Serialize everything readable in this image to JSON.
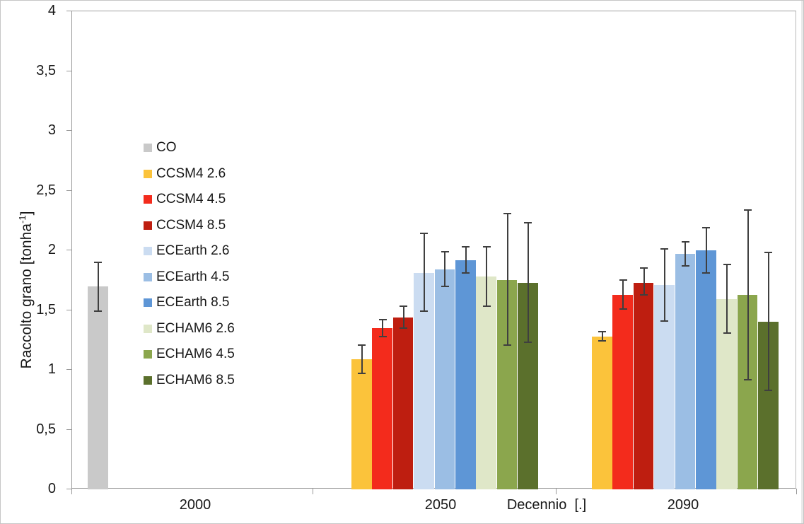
{
  "chart_data": {
    "type": "bar",
    "title": "",
    "xlabel": "Decennio  [.]",
    "ylabel": "Raccolto grano [tonha-1]",
    "ylabel_parts": {
      "main": "Raccolto grano [tonha",
      "sup": "-1",
      "end": "]"
    },
    "ylim": [
      0,
      4
    ],
    "ytick_values": [
      0,
      0.5,
      1,
      1.5,
      2,
      2.5,
      3,
      3.5,
      4
    ],
    "ytick_labels": [
      "0",
      "0,5",
      "1",
      "1,5",
      "2",
      "2,5",
      "3",
      "3,5",
      "4"
    ],
    "categories": [
      "2000",
      "2050",
      "2090"
    ],
    "x_tick_labels": [
      "2000",
      "2050",
      "2090"
    ],
    "grid": false,
    "error_bars": true,
    "legend_position": "inside top-left",
    "series": [
      {
        "name": "CO",
        "color": "#C9C9C9",
        "values": [
          1.7,
          null,
          null
        ],
        "err_lo": [
          1.49,
          null,
          null
        ],
        "err_hi": [
          1.9,
          null,
          null
        ]
      },
      {
        "name": "CCSM4 2.6",
        "color": "#FBC33B",
        "values": [
          null,
          1.09,
          1.28
        ],
        "err_lo": [
          null,
          0.97,
          1.24
        ],
        "err_hi": [
          null,
          1.21,
          1.32
        ]
      },
      {
        "name": "CCSM4 4.5",
        "color": "#F32B1C",
        "values": [
          null,
          1.35,
          1.63
        ],
        "err_lo": [
          null,
          1.28,
          1.51
        ],
        "err_hi": [
          null,
          1.42,
          1.75
        ]
      },
      {
        "name": "CCSM4 8.5",
        "color": "#BE1E10",
        "values": [
          null,
          1.44,
          1.73
        ],
        "err_lo": [
          null,
          1.35,
          1.63
        ],
        "err_hi": [
          null,
          1.53,
          1.85
        ]
      },
      {
        "name": "ECEarth 2.6",
        "color": "#CBDCF1",
        "values": [
          null,
          1.81,
          1.71
        ],
        "err_lo": [
          null,
          1.49,
          1.41
        ],
        "err_hi": [
          null,
          2.14,
          2.01
        ]
      },
      {
        "name": "ECEarth 4.5",
        "color": "#9BBEE4",
        "values": [
          null,
          1.84,
          1.97
        ],
        "err_lo": [
          null,
          1.7,
          1.87
        ],
        "err_hi": [
          null,
          1.99,
          2.07
        ]
      },
      {
        "name": "ECEarth 8.5",
        "color": "#5E96D6",
        "values": [
          null,
          1.92,
          2.0
        ],
        "err_lo": [
          null,
          1.81,
          1.81
        ],
        "err_hi": [
          null,
          2.03,
          2.19
        ]
      },
      {
        "name": "ECHAM6 2.6",
        "color": "#DFE7C8",
        "values": [
          null,
          1.78,
          1.59
        ],
        "err_lo": [
          null,
          1.53,
          1.31
        ],
        "err_hi": [
          null,
          2.03,
          1.88
        ]
      },
      {
        "name": "ECHAM6 4.5",
        "color": "#8BA64D",
        "values": [
          null,
          1.75,
          1.63
        ],
        "err_lo": [
          null,
          1.21,
          0.92
        ],
        "err_hi": [
          null,
          2.31,
          2.34
        ]
      },
      {
        "name": "ECHAM6 8.5",
        "color": "#5B702C",
        "values": [
          null,
          1.73,
          1.4
        ],
        "err_lo": [
          null,
          1.23,
          0.83
        ],
        "err_hi": [
          null,
          2.23,
          1.98
        ]
      }
    ]
  },
  "colors": {
    "background": "#FFFFFF",
    "axis": "#989898",
    "error_bar": "#3F3F3F",
    "text": "#181818",
    "canvas_border": "#C6C6C6"
  }
}
